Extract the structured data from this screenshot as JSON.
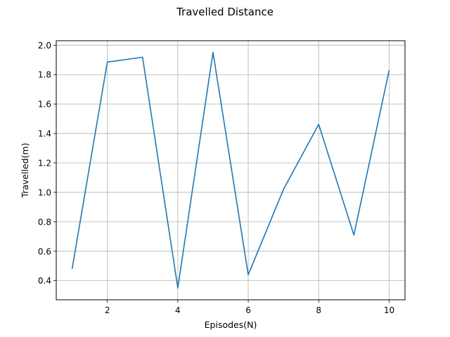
{
  "chart_data": {
    "type": "line",
    "title": "Travelled Distance",
    "xlabel": "Episodes(N)",
    "ylabel": "Travelled(m)",
    "x": [
      1,
      2,
      3,
      4,
      5,
      6,
      7,
      8,
      9,
      10
    ],
    "series": [
      {
        "values": [
          0.48,
          1.885,
          1.918,
          0.35,
          1.951,
          0.44,
          1.02,
          1.462,
          0.71,
          1.83
        ],
        "color": "#1f77b4"
      }
    ],
    "xlim": [
      0.55,
      10.45
    ],
    "ylim": [
      0.27,
      2.03
    ],
    "xticks": [
      2,
      4,
      6,
      8,
      10
    ],
    "yticks": [
      0.4,
      0.6,
      0.8,
      1.0,
      1.2,
      1.4,
      1.6,
      1.8,
      2.0
    ],
    "xtick_labels": [
      "2",
      "4",
      "6",
      "8",
      "10"
    ],
    "ytick_labels": [
      "0.4",
      "0.6",
      "0.8",
      "1.0",
      "1.2",
      "1.4",
      "1.6",
      "1.8",
      "2.0"
    ],
    "grid": true,
    "grid_color": "#b0b0b0"
  }
}
